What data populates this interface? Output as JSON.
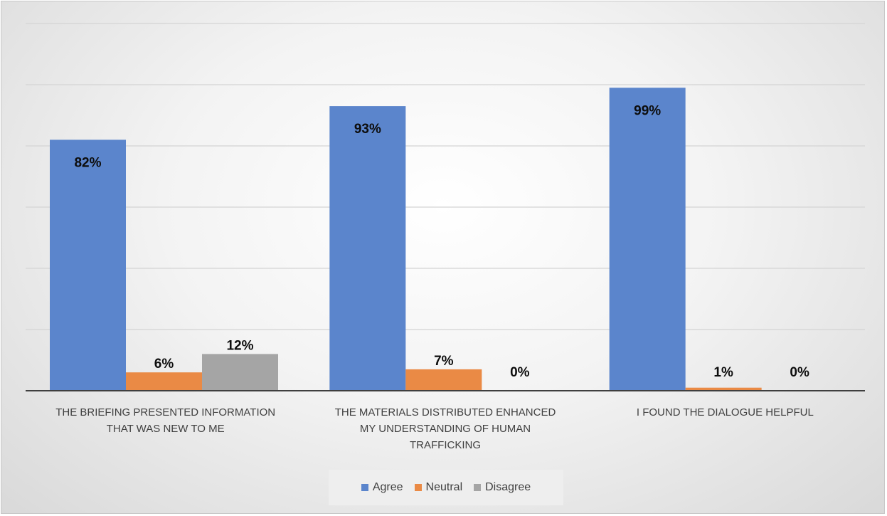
{
  "chart_data": {
    "type": "bar",
    "categories": [
      "THE BRIEFING PRESENTED INFORMATION THAT WAS NEW TO ME",
      "THE MATERIALS DISTRIBUTED ENHANCED MY UNDERSTANDING OF HUMAN TRAFFICKING",
      "I FOUND THE DIALOGUE HELPFUL"
    ],
    "category_label_lines": [
      [
        "THE BRIEFING PRESENTED INFORMATION",
        "THAT WAS NEW TO ME"
      ],
      [
        "THE MATERIALS DISTRIBUTED ENHANCED",
        "MY UNDERSTANDING OF HUMAN",
        "TRAFFICKING"
      ],
      [
        "I FOUND THE DIALOGUE HELPFUL"
      ]
    ],
    "series": [
      {
        "name": "Agree",
        "values": [
          82,
          93,
          99
        ],
        "labels": [
          "82%",
          "93%",
          "99%"
        ],
        "color": "#5b85cc"
      },
      {
        "name": "Neutral",
        "values": [
          6,
          7,
          1
        ],
        "labels": [
          "6%",
          "7%",
          "1%"
        ],
        "color": "#ea8a45"
      },
      {
        "name": "Disagree",
        "values": [
          12,
          0,
          0
        ],
        "labels": [
          "12%",
          "0%",
          "0%"
        ],
        "color": "#a5a5a5"
      }
    ],
    "ylim": [
      0,
      120
    ],
    "grid": true,
    "title": "",
    "xlabel": "",
    "ylabel": "",
    "legend_position": "bottom"
  }
}
